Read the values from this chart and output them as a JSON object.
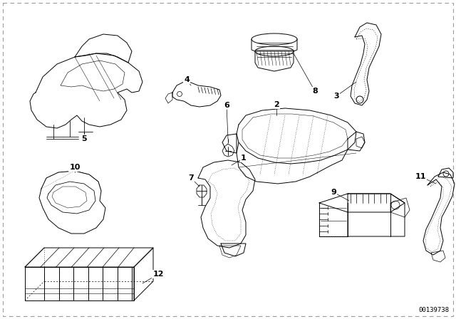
{
  "bg_color": "#ffffff",
  "line_color": "#000000",
  "part_number_text": "00139738",
  "lw": 0.7
}
